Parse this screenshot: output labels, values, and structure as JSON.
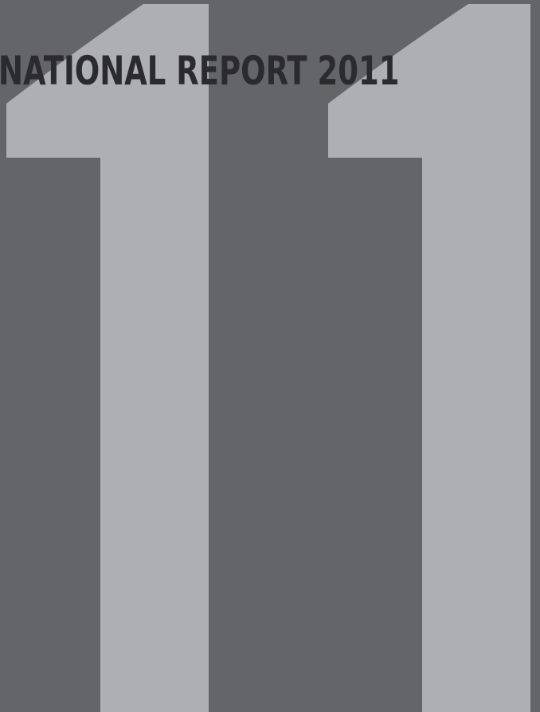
{
  "cover": {
    "title": "NATIONAL REPORT 2011",
    "background_color": "#646569",
    "numeral_color": "#aeafb3",
    "title_color": "#2b2b2d"
  }
}
